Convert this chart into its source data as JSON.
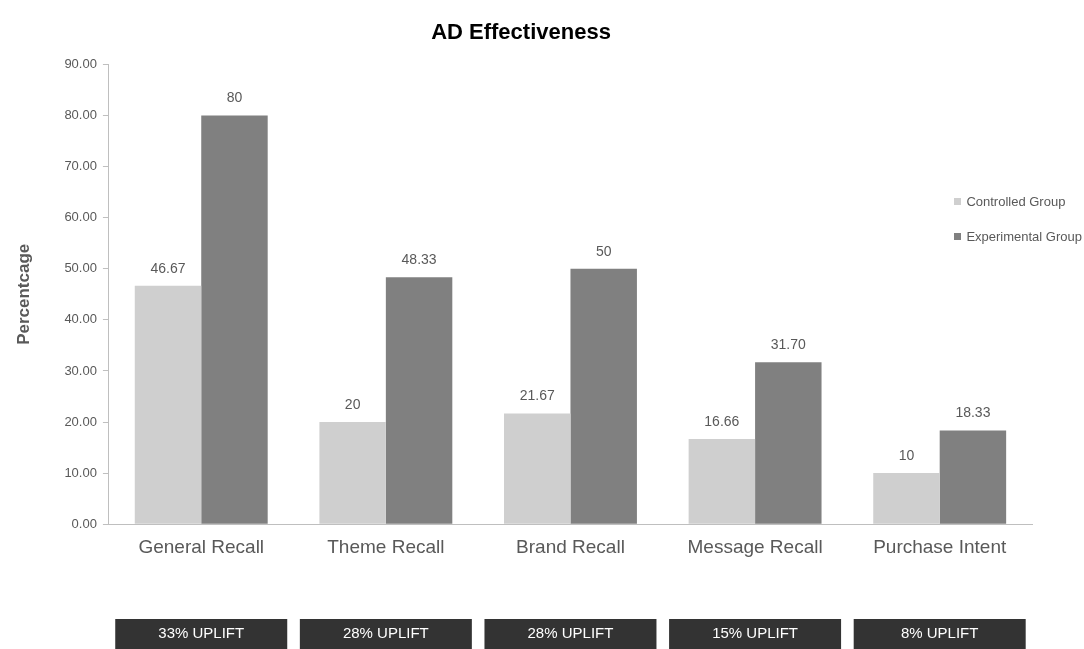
{
  "chart_data": {
    "type": "bar",
    "title": "AD Effectiveness",
    "ylabel": "Percentcage",
    "categories": [
      "General Recall",
      "Theme Recall",
      "Brand Recall",
      "Message Recall",
      "Purchase Intent"
    ],
    "series": [
      {
        "name": "Controlled Group",
        "color": "#cfcfcf",
        "values": [
          46.67,
          20,
          21.67,
          16.66,
          10
        ],
        "value_labels": [
          "46.67",
          "20",
          "21.67",
          "16.66",
          "10"
        ]
      },
      {
        "name": "Experimental Group",
        "color": "#808080",
        "values": [
          80,
          48.33,
          50,
          31.7,
          18.33
        ],
        "value_labels": [
          "80",
          "48.33",
          "50",
          "31.70",
          "18.33"
        ]
      }
    ],
    "ylim": [
      0,
      90
    ],
    "yticks": [
      {
        "value": 0,
        "label": "0.00"
      },
      {
        "value": 10,
        "label": "10.00"
      },
      {
        "value": 20,
        "label": "20.00"
      },
      {
        "value": 30,
        "label": "30.00"
      },
      {
        "value": 40,
        "label": "40.00"
      },
      {
        "value": 50,
        "label": "50.00"
      },
      {
        "value": 60,
        "label": "60.00"
      },
      {
        "value": 70,
        "label": "70.00"
      },
      {
        "value": 80,
        "label": "80.00"
      },
      {
        "value": 90,
        "label": "90.00"
      }
    ],
    "grid": false,
    "legend": "right",
    "annotations": [
      "33% UPLIFT",
      "28% UPLIFT",
      "28% UPLIFT",
      "15% UPLIFT",
      "8% UPLIFT"
    ]
  }
}
